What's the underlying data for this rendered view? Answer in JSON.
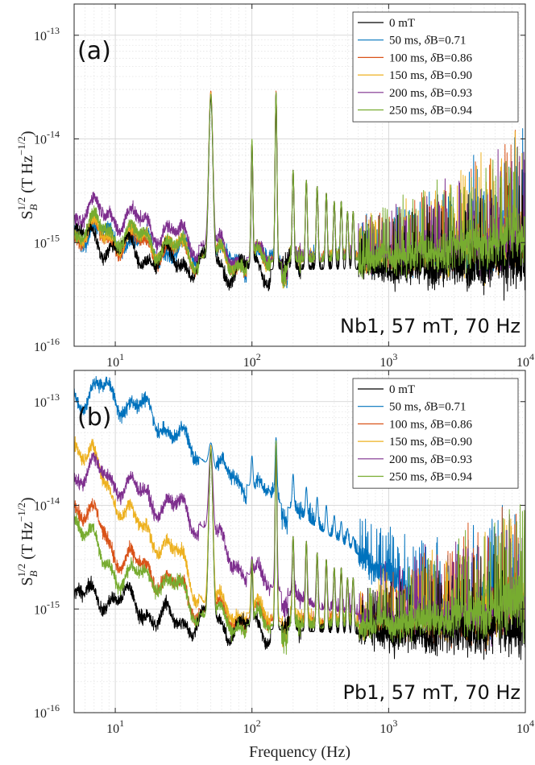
{
  "chart_data": [
    {
      "type": "line",
      "panel_label": "(a)",
      "annotation": "Nb1, 57 mT, 70 Hz",
      "xscale": "log",
      "yscale": "log",
      "xlim": [
        5,
        10000
      ],
      "ylim": [
        1e-16,
        2e-13
      ],
      "xticks": [
        10,
        100,
        1000,
        10000
      ],
      "xtick_labels": [
        [
          "10",
          "1"
        ],
        [
          "10",
          "2"
        ],
        [
          "10",
          "3"
        ],
        [
          "10",
          "4"
        ]
      ],
      "yticks": [
        1e-16,
        1e-15,
        1e-14,
        1e-13
      ],
      "ytick_labels": [
        [
          "10",
          "-16"
        ],
        [
          "10",
          "-15"
        ],
        [
          "10",
          "-14"
        ],
        [
          "10",
          "-13"
        ]
      ],
      "ylabel": "S_B^{1/2} (T Hz^{-1/2})",
      "grid": true,
      "legend_position": "top-right",
      "peaks_hz": [
        50,
        100,
        150,
        200,
        250,
        300,
        350,
        400,
        450,
        500,
        550
      ],
      "series": [
        {
          "name": "0 mT",
          "color": "#000000",
          "base": [
            [
              5,
              1.2e-15
            ],
            [
              8,
              1e-15
            ],
            [
              20,
              7e-16
            ],
            [
              45,
              6e-16
            ],
            [
              100,
              5.5e-16
            ],
            [
              300,
              5.5e-16
            ],
            [
              1000,
              5.5e-16
            ],
            [
              5000,
              6e-16
            ],
            [
              10000,
              7e-16
            ]
          ],
          "peaks": [
            2.5e-14,
            9e-15,
            2.7e-14,
            5e-15,
            4e-15,
            3.5e-15,
            3e-15,
            2.5e-15,
            2.5e-15,
            2e-15,
            2e-15
          ]
        },
        {
          "name": "50 ms, δB=0.71",
          "color": "#0072BD",
          "base": [
            [
              5,
              1.3e-15
            ],
            [
              8,
              1.2e-15
            ],
            [
              20,
              9e-16
            ],
            [
              45,
              7e-16
            ],
            [
              100,
              6.5e-16
            ],
            [
              300,
              6.5e-16
            ],
            [
              1000,
              7e-16
            ],
            [
              5000,
              9e-16
            ],
            [
              10000,
              1.2e-15
            ]
          ],
          "peaks": [
            2.6e-14,
            9.5e-15,
            2.8e-14,
            5e-15,
            4e-15,
            3.5e-15,
            3e-15,
            2.5e-15,
            2.5e-15,
            2e-15,
            2e-15
          ]
        },
        {
          "name": "100 ms, δB=0.86",
          "color": "#D95319",
          "base": [
            [
              5,
              1.25e-15
            ],
            [
              8,
              1.15e-15
            ],
            [
              20,
              9e-16
            ],
            [
              45,
              7e-16
            ],
            [
              100,
              6.5e-16
            ],
            [
              300,
              6.5e-16
            ],
            [
              1000,
              7e-16
            ],
            [
              5000,
              9e-16
            ],
            [
              10000,
              1.2e-15
            ]
          ],
          "peaks": [
            2.9e-14,
            9.5e-15,
            2.9e-14,
            5e-15,
            4e-15,
            3.5e-15,
            3e-15,
            2.5e-15,
            2.5e-15,
            2e-15,
            2e-15
          ]
        },
        {
          "name": "150 ms, δB=0.90",
          "color": "#EDB120",
          "base": [
            [
              5,
              1.3e-15
            ],
            [
              8,
              1.2e-15
            ],
            [
              20,
              1e-15
            ],
            [
              45,
              7e-16
            ],
            [
              100,
              6.5e-16
            ],
            [
              300,
              6.5e-16
            ],
            [
              1000,
              7e-16
            ],
            [
              5000,
              9e-16
            ],
            [
              10000,
              1.2e-15
            ]
          ],
          "peaks": [
            2.8e-14,
            9.5e-15,
            2.8e-14,
            5e-15,
            4e-15,
            3.5e-15,
            3e-15,
            2.5e-15,
            2.5e-15,
            2e-15,
            2e-15
          ]
        },
        {
          "name": "200 ms, δB=0.93",
          "color": "#7E2F8E",
          "base": [
            [
              5,
              1.9e-15
            ],
            [
              8,
              2e-15
            ],
            [
              20,
              1.4e-15
            ],
            [
              45,
              9e-16
            ],
            [
              100,
              7e-16
            ],
            [
              300,
              6.5e-16
            ],
            [
              1000,
              7e-16
            ],
            [
              5000,
              9e-16
            ],
            [
              10000,
              1.2e-15
            ]
          ],
          "peaks": [
            2.7e-14,
            9.5e-15,
            2.8e-14,
            5e-15,
            4e-15,
            3.5e-15,
            3e-15,
            2.5e-15,
            2.5e-15,
            2e-15,
            2e-15
          ]
        },
        {
          "name": "250 ms, δB=0.94",
          "color": "#77AC30",
          "base": [
            [
              5,
              1.3e-15
            ],
            [
              8,
              1.4e-15
            ],
            [
              20,
              1e-15
            ],
            [
              45,
              7e-16
            ],
            [
              100,
              6.5e-16
            ],
            [
              300,
              6.5e-16
            ],
            [
              1000,
              7e-16
            ],
            [
              5000,
              9.5e-16
            ],
            [
              10000,
              1.3e-15
            ]
          ],
          "peaks": [
            2.7e-14,
            1e-14,
            2.8e-14,
            5e-15,
            4e-15,
            3.5e-15,
            3e-15,
            2.5e-15,
            2.5e-15,
            2e-15,
            2e-15
          ]
        }
      ]
    },
    {
      "type": "line",
      "panel_label": "(b)",
      "annotation": "Pb1, 57 mT, 70 Hz",
      "xscale": "log",
      "yscale": "log",
      "xlim": [
        5,
        10000
      ],
      "ylim": [
        1e-16,
        2e-13
      ],
      "xticks": [
        10,
        100,
        1000,
        10000
      ],
      "xtick_labels": [
        [
          "10",
          "1"
        ],
        [
          "10",
          "2"
        ],
        [
          "10",
          "3"
        ],
        [
          "10",
          "4"
        ]
      ],
      "yticks": [
        1e-16,
        1e-15,
        1e-14,
        1e-13
      ],
      "ytick_labels": [
        [
          "10",
          "-16"
        ],
        [
          "10",
          "-15"
        ],
        [
          "10",
          "-14"
        ],
        [
          "10",
          "-13"
        ]
      ],
      "xlabel": "Frequency (Hz)",
      "ylabel": "S_B^{1/2} (T Hz^{-1/2})",
      "grid": true,
      "legend_position": "top-right",
      "peaks_hz": [
        50,
        100,
        150,
        200,
        250,
        300,
        350,
        400,
        450,
        500,
        550
      ],
      "series": [
        {
          "name": "0 mT",
          "color": "#000000",
          "base": [
            [
              5,
              1.3e-15
            ],
            [
              8,
              1.35e-15
            ],
            [
              15,
              1.1e-15
            ],
            [
              20,
              8e-16
            ],
            [
              45,
              7.5e-16
            ],
            [
              100,
              6.5e-16
            ],
            [
              300,
              6e-16
            ],
            [
              1000,
              5.5e-16
            ],
            [
              5000,
              6e-16
            ],
            [
              10000,
              7e-16
            ]
          ],
          "peaks": [
            3.3e-14,
            2.5e-15,
            4e-14,
            5e-15,
            4.5e-15,
            3.5e-15,
            3e-15,
            2.5e-15,
            2.5e-15,
            2e-15,
            2e-15
          ]
        },
        {
          "name": "50 ms, δB=0.71",
          "color": "#0072BD",
          "base": [
            [
              5,
              1.1e-13
            ],
            [
              8,
              1.3e-13
            ],
            [
              20,
              7e-14
            ],
            [
              50,
              2.3e-14
            ],
            [
              100,
              1.5e-14
            ],
            [
              200,
              9e-15
            ],
            [
              300,
              6e-15
            ],
            [
              500,
              4e-15
            ],
            [
              1000,
              2e-15
            ],
            [
              2000,
              1.2e-15
            ],
            [
              5000,
              1e-15
            ],
            [
              10000,
              1.2e-15
            ]
          ],
          "peaks": [
            4e-14,
            3e-14,
            4.5e-14,
            2e-14,
            1.5e-14,
            1.2e-14,
            1e-14,
            8e-15,
            7e-15,
            6e-15,
            5e-15
          ]
        },
        {
          "name": "100 ms, δB=0.86",
          "color": "#D95319",
          "base": [
            [
              5,
              1.1e-14
            ],
            [
              8,
              6e-15
            ],
            [
              10,
              3.5e-15
            ],
            [
              15,
              2.5e-15
            ],
            [
              20,
              2.2e-15
            ],
            [
              30,
              1.5e-15
            ],
            [
              45,
              9e-16
            ],
            [
              100,
              8e-16
            ],
            [
              300,
              7e-16
            ],
            [
              1000,
              7e-16
            ],
            [
              5000,
              9e-16
            ],
            [
              10000,
              1.2e-15
            ]
          ],
          "peaks": [
            3.5e-14,
            3e-15,
            4e-14,
            5e-15,
            4.5e-15,
            3.5e-15,
            3e-15,
            2.5e-15,
            2.5e-15,
            2e-15,
            2e-15
          ]
        },
        {
          "name": "150 ms, δB=0.90",
          "color": "#EDB120",
          "base": [
            [
              5,
              4.5e-14
            ],
            [
              7,
              2.5e-14
            ],
            [
              10,
              1.2e-14
            ],
            [
              15,
              6e-15
            ],
            [
              20,
              5e-15
            ],
            [
              30,
              3e-15
            ],
            [
              45,
              1.1e-15
            ],
            [
              100,
              9e-16
            ],
            [
              300,
              7e-16
            ],
            [
              1000,
              7e-16
            ],
            [
              5000,
              9e-16
            ],
            [
              10000,
              1.2e-15
            ]
          ],
          "peaks": [
            3.8e-14,
            3e-15,
            4e-14,
            5e-15,
            4.5e-15,
            3.5e-15,
            3e-15,
            2.5e-15,
            2.5e-15,
            2e-15,
            2e-15
          ]
        },
        {
          "name": "200 ms, δB=0.93",
          "color": "#7E2F8E",
          "base": [
            [
              5,
              2e-14
            ],
            [
              8,
              2.1e-14
            ],
            [
              15,
              1.3e-14
            ],
            [
              20,
              1.1e-14
            ],
            [
              30,
              9e-15
            ],
            [
              45,
              6e-15
            ],
            [
              100,
              2e-15
            ],
            [
              300,
              1e-15
            ],
            [
              1000,
              8e-16
            ],
            [
              5000,
              9e-16
            ],
            [
              10000,
              1.2e-15
            ]
          ],
          "peaks": [
            3.5e-14,
            3.2e-15,
            4e-14,
            5e-15,
            4.5e-15,
            3.5e-15,
            3e-15,
            2.5e-15,
            2.5e-15,
            2e-15,
            2e-15
          ]
        },
        {
          "name": "250 ms, δB=0.94",
          "color": "#77AC30",
          "base": [
            [
              5,
              9e-15
            ],
            [
              8,
              3e-15
            ],
            [
              12,
              2e-15
            ],
            [
              20,
              2.1e-15
            ],
            [
              30,
              1.5e-15
            ],
            [
              45,
              8e-16
            ],
            [
              100,
              7e-16
            ],
            [
              300,
              6.5e-16
            ],
            [
              1000,
              7e-16
            ],
            [
              5000,
              9.5e-16
            ],
            [
              10000,
              1.3e-15
            ]
          ],
          "peaks": [
            3.5e-14,
            3e-15,
            4.2e-14,
            5e-15,
            4.5e-15,
            3.5e-15,
            3e-15,
            2.5e-15,
            2.5e-15,
            2e-15,
            2e-15
          ]
        }
      ]
    }
  ]
}
